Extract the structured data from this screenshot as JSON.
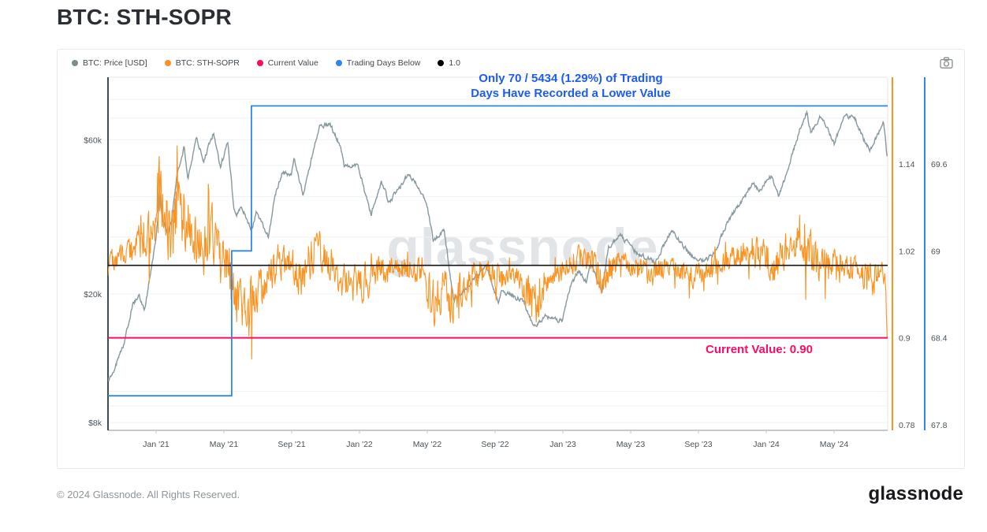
{
  "title": "BTC: STH-SOPR",
  "watermark": "glassnode",
  "toolbar": {
    "camera_icon": "camera-icon"
  },
  "legend": {
    "items": [
      {
        "label": "BTC: Price [USD]",
        "color": "#7d8b92"
      },
      {
        "label": "BTC: STH-SOPR",
        "color": "#fb9321"
      },
      {
        "label": "Current Value",
        "color": "#ff0a63"
      },
      {
        "label": "Trading Days Below",
        "color": "#2e86f0"
      },
      {
        "label": "1.0",
        "color": "#000000"
      }
    ]
  },
  "annotations": {
    "trading_days": {
      "line1": "Only 70 / 5434 (1.29%) of Trading",
      "line2": "Days Have Recorded a Lower Value",
      "color": "#1d5bf2"
    },
    "current_value": {
      "text": "Current Value: 0.90",
      "color": "#ff0a63"
    }
  },
  "footer": {
    "copyright": "© 2024 Glassnode. All Rights Reserved.",
    "logo_text": "glassnode"
  },
  "chart_data": {
    "type": "line",
    "title": "BTC: STH-SOPR",
    "x_axis": {
      "range": [
        "2020-10-06",
        "2024-08-05"
      ],
      "ticks": [
        {
          "label": "Jan '21",
          "date": "2021-01-01"
        },
        {
          "label": "May '21",
          "date": "2021-05-01"
        },
        {
          "label": "Sep '21",
          "date": "2021-09-01"
        },
        {
          "label": "Jan '22",
          "date": "2022-01-01"
        },
        {
          "label": "May '22",
          "date": "2022-05-01"
        },
        {
          "label": "Sep '22",
          "date": "2022-09-01"
        },
        {
          "label": "Jan '23",
          "date": "2023-01-01"
        },
        {
          "label": "May '23",
          "date": "2023-05-01"
        },
        {
          "label": "Sep '23",
          "date": "2023-09-01"
        },
        {
          "label": "Jan '24",
          "date": "2024-01-01"
        },
        {
          "label": "May '24",
          "date": "2024-05-01"
        }
      ]
    },
    "left_axis": {
      "name": "BTC: Price [USD]",
      "scale": "log",
      "tick_labels": [
        "$60k",
        "$20k",
        "$8k"
      ],
      "tick_values": [
        60000,
        20000,
        8000
      ],
      "approx_range": [
        7500,
        90000
      ]
    },
    "right_axis_sopr": {
      "name": "BTC: STH-SOPR",
      "color": "#fb9321",
      "tick_labels": [
        "1.14",
        "1.02",
        "0.9",
        "0.78"
      ],
      "tick_values": [
        1.14,
        1.02,
        0.9,
        0.78
      ],
      "approx_range": [
        0.775,
        1.26
      ]
    },
    "right_axis_days": {
      "name": "Trading Days Below",
      "color": "#2e86f0",
      "tick_labels": [
        "69.6",
        "69",
        "68.4",
        "67.8"
      ],
      "tick_values": [
        69.6,
        69,
        68.4,
        67.8
      ]
    },
    "hlines": [
      {
        "name": "1.0",
        "axis": "sopr",
        "value": 1.0,
        "color": "#141414"
      },
      {
        "name": "Current Value",
        "axis": "sopr",
        "value": 0.9,
        "color": "#ff0a63"
      }
    ],
    "trading_days_below_steps": [
      {
        "date": "2020-10-06",
        "count": 68
      },
      {
        "date": "2021-05-15",
        "count": 69
      },
      {
        "date": "2021-06-20",
        "count": 70
      }
    ],
    "price_series": {
      "name": "BTC: Price [USD]",
      "color": "#87989f",
      "points": [
        [
          "2020-10-06",
          10700
        ],
        [
          "2020-10-20",
          12000
        ],
        [
          "2020-11-05",
          14100
        ],
        [
          "2020-11-20",
          18700
        ],
        [
          "2020-12-01",
          19700
        ],
        [
          "2020-12-11",
          18000
        ],
        [
          "2020-12-31",
          29000
        ],
        [
          "2021-01-08",
          41500
        ],
        [
          "2021-01-12",
          33500
        ],
        [
          "2021-01-22",
          30800
        ],
        [
          "2021-01-29",
          34300
        ],
        [
          "2021-02-08",
          46400
        ],
        [
          "2021-02-21",
          57500
        ],
        [
          "2021-02-28",
          45100
        ],
        [
          "2021-03-13",
          61200
        ],
        [
          "2021-03-25",
          51300
        ],
        [
          "2021-04-13",
          63500
        ],
        [
          "2021-04-25",
          49100
        ],
        [
          "2021-05-08",
          58800
        ],
        [
          "2021-05-19",
          36700
        ],
        [
          "2021-05-23",
          34700
        ],
        [
          "2021-06-02",
          37600
        ],
        [
          "2021-06-21",
          31600
        ],
        [
          "2021-06-29",
          35900
        ],
        [
          "2021-07-20",
          29800
        ],
        [
          "2021-08-01",
          39900
        ],
        [
          "2021-08-14",
          47100
        ],
        [
          "2021-08-31",
          47100
        ],
        [
          "2021-09-06",
          52700
        ],
        [
          "2021-09-21",
          40700
        ],
        [
          "2021-10-01",
          48200
        ],
        [
          "2021-10-20",
          66000
        ],
        [
          "2021-11-08",
          67500
        ],
        [
          "2021-11-28",
          57300
        ],
        [
          "2021-12-04",
          49200
        ],
        [
          "2021-12-27",
          50700
        ],
        [
          "2022-01-10",
          41800
        ],
        [
          "2022-01-22",
          35100
        ],
        [
          "2022-02-10",
          44600
        ],
        [
          "2022-02-24",
          38300
        ],
        [
          "2022-03-29",
          47400
        ],
        [
          "2022-04-30",
          38600
        ],
        [
          "2022-05-12",
          29000
        ],
        [
          "2022-05-31",
          31800
        ],
        [
          "2022-06-18",
          19000
        ],
        [
          "2022-07-10",
          20800
        ],
        [
          "2022-08-14",
          24400
        ],
        [
          "2022-09-07",
          18800
        ],
        [
          "2022-09-13",
          20400
        ],
        [
          "2022-10-20",
          19100
        ],
        [
          "2022-11-10",
          15900
        ],
        [
          "2022-12-01",
          17100
        ],
        [
          "2022-12-30",
          16500
        ],
        [
          "2023-01-14",
          20900
        ],
        [
          "2023-01-29",
          23700
        ],
        [
          "2023-02-13",
          21800
        ],
        [
          "2023-02-21",
          24800
        ],
        [
          "2023-03-10",
          20200
        ],
        [
          "2023-03-22",
          28100
        ],
        [
          "2023-04-14",
          30400
        ],
        [
          "2023-05-12",
          26800
        ],
        [
          "2023-06-15",
          25100
        ],
        [
          "2023-07-13",
          31400
        ],
        [
          "2023-08-16",
          26600
        ],
        [
          "2023-09-11",
          25200
        ],
        [
          "2023-10-01",
          27000
        ],
        [
          "2023-10-24",
          33900
        ],
        [
          "2023-11-09",
          36700
        ],
        [
          "2023-12-08",
          44200
        ],
        [
          "2023-12-18",
          41400
        ],
        [
          "2024-01-11",
          46700
        ],
        [
          "2024-01-23",
          39600
        ],
        [
          "2024-02-12",
          49900
        ],
        [
          "2024-02-28",
          62500
        ],
        [
          "2024-03-13",
          73100
        ],
        [
          "2024-03-20",
          62800
        ],
        [
          "2024-04-08",
          71600
        ],
        [
          "2024-05-01",
          58300
        ],
        [
          "2024-05-21",
          71400
        ],
        [
          "2024-06-07",
          70600
        ],
        [
          "2024-06-24",
          60300
        ],
        [
          "2024-07-05",
          55900
        ],
        [
          "2024-07-29",
          67900
        ],
        [
          "2024-08-05",
          53000
        ]
      ]
    },
    "sopr_series": {
      "name": "BTC: STH-SOPR",
      "color": "#fb9321",
      "current_value": 0.9,
      "anchors_value_amplitude": [
        [
          "2020-10-06",
          1.005,
          0.012
        ],
        [
          "2020-11-01",
          1.015,
          0.015
        ],
        [
          "2020-12-01",
          1.03,
          0.022
        ],
        [
          "2020-12-20",
          1.05,
          0.03
        ],
        [
          "2021-01-08",
          1.1,
          0.05
        ],
        [
          "2021-01-25",
          1.04,
          0.04
        ],
        [
          "2021-02-14",
          1.09,
          0.045
        ],
        [
          "2021-03-01",
          1.05,
          0.035
        ],
        [
          "2021-03-25",
          1.02,
          0.03
        ],
        [
          "2021-04-10",
          1.05,
          0.03
        ],
        [
          "2021-04-25",
          1.0,
          0.03
        ],
        [
          "2021-05-12",
          0.99,
          0.035
        ],
        [
          "2021-05-20",
          0.93,
          0.04
        ],
        [
          "2021-06-01",
          0.96,
          0.03
        ],
        [
          "2021-06-10",
          0.9,
          0.045
        ],
        [
          "2021-06-25",
          0.965,
          0.03
        ],
        [
          "2021-07-15",
          0.975,
          0.02
        ],
        [
          "2021-08-05",
          1.005,
          0.02
        ],
        [
          "2021-09-01",
          1.005,
          0.02
        ],
        [
          "2021-09-20",
          0.975,
          0.025
        ],
        [
          "2021-10-10",
          1.03,
          0.03
        ],
        [
          "2021-10-25",
          1.015,
          0.02
        ],
        [
          "2021-11-15",
          1.0,
          0.02
        ],
        [
          "2021-12-05",
          0.975,
          0.022
        ],
        [
          "2022-01-10",
          0.975,
          0.02
        ],
        [
          "2022-02-05",
          0.99,
          0.018
        ],
        [
          "2022-03-01",
          0.995,
          0.015
        ],
        [
          "2022-04-01",
          1.0,
          0.013
        ],
        [
          "2022-04-25",
          0.985,
          0.015
        ],
        [
          "2022-05-12",
          0.945,
          0.03
        ],
        [
          "2022-06-01",
          0.975,
          0.02
        ],
        [
          "2022-06-18",
          0.945,
          0.03
        ],
        [
          "2022-07-10",
          0.975,
          0.018
        ],
        [
          "2022-08-10",
          0.995,
          0.013
        ],
        [
          "2022-09-10",
          0.98,
          0.015
        ],
        [
          "2022-10-10",
          0.99,
          0.01
        ],
        [
          "2022-11-10",
          0.945,
          0.028
        ],
        [
          "2022-12-05",
          0.98,
          0.012
        ],
        [
          "2023-01-05",
          0.995,
          0.012
        ],
        [
          "2023-01-25",
          1.01,
          0.015
        ],
        [
          "2023-02-20",
          1.005,
          0.015
        ],
        [
          "2023-03-10",
          0.985,
          0.02
        ],
        [
          "2023-04-10",
          1.005,
          0.012
        ],
        [
          "2023-05-10",
          0.995,
          0.012
        ],
        [
          "2023-06-10",
          0.99,
          0.015
        ],
        [
          "2023-07-10",
          1.0,
          0.01
        ],
        [
          "2023-08-20",
          0.985,
          0.015
        ],
        [
          "2023-09-15",
          0.99,
          0.012
        ],
        [
          "2023-10-15",
          1.005,
          0.012
        ],
        [
          "2023-11-10",
          1.015,
          0.015
        ],
        [
          "2023-12-10",
          1.02,
          0.02
        ],
        [
          "2024-01-15",
          1.0,
          0.02
        ],
        [
          "2024-02-15",
          1.03,
          0.025
        ],
        [
          "2024-03-05",
          1.045,
          0.035
        ],
        [
          "2024-03-25",
          1.01,
          0.025
        ],
        [
          "2024-04-15",
          1.005,
          0.02
        ],
        [
          "2024-05-10",
          1.005,
          0.015
        ],
        [
          "2024-06-10",
          0.995,
          0.015
        ],
        [
          "2024-07-08",
          0.975,
          0.02
        ],
        [
          "2024-07-25",
          1.0,
          0.018
        ],
        [
          "2024-08-02",
          0.975,
          0.012
        ],
        [
          "2024-08-05",
          0.9,
          0.002
        ]
      ]
    }
  }
}
